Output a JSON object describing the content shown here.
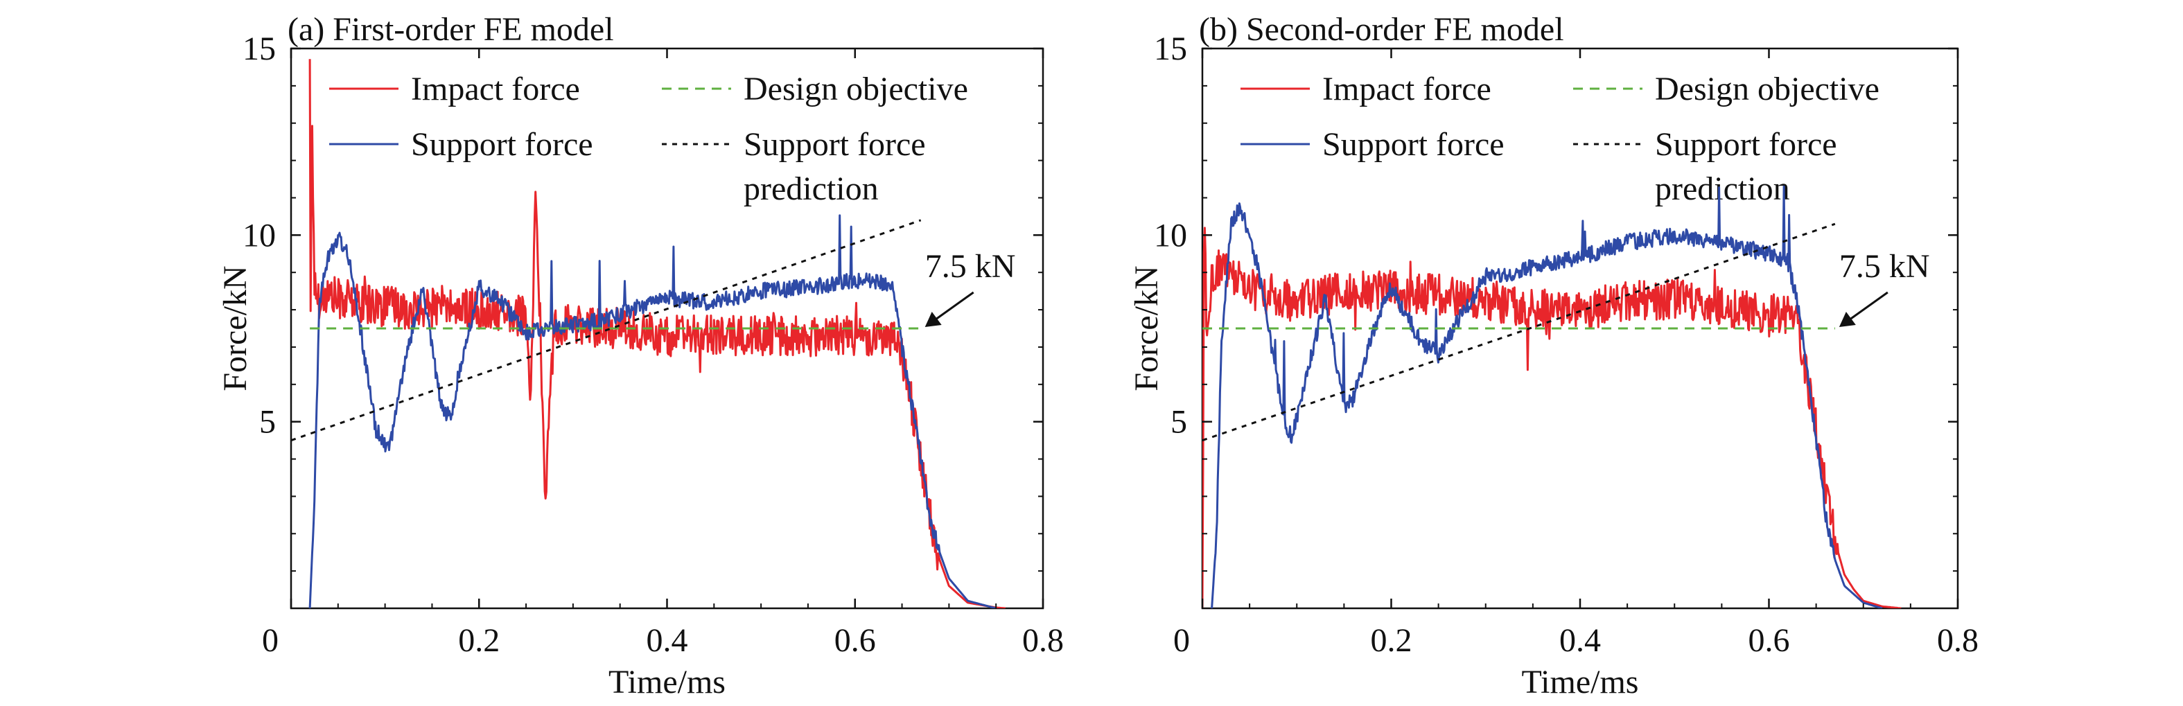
{
  "chart_data": [
    {
      "type": "line",
      "title": "(a) First-order FE model",
      "xlabel": "Time/ms",
      "ylabel": "Force/kN",
      "xlim": [
        0,
        0.8
      ],
      "ylim": [
        0,
        15
      ],
      "xticks": [
        "0",
        "0.2",
        "0.4",
        "0.6",
        "0.8"
      ],
      "yticks": [
        "5",
        "10",
        "15"
      ],
      "xtick_values": [
        0,
        0.2,
        0.4,
        0.6,
        0.8
      ],
      "ytick_values": [
        5,
        10,
        15
      ],
      "grid": false,
      "legend_placement": "top",
      "annotation": {
        "text": "7.5 kN",
        "points_to": [
          0.67,
          7.5
        ]
      },
      "legend": {
        "impact": "Impact force",
        "support": "Support force",
        "design": "Design objective",
        "prediction_line1": "Support force",
        "prediction_line2": "prediction"
      },
      "series": [
        {
          "name": "Impact force",
          "color": "#e8262b",
          "style": "solid",
          "x": [
            0.02,
            0.021,
            0.022,
            0.025,
            0.03,
            0.04,
            0.05,
            0.07,
            0.1,
            0.13,
            0.16,
            0.2,
            0.23,
            0.25,
            0.255,
            0.26,
            0.265,
            0.27,
            0.28,
            0.3,
            0.35,
            0.4,
            0.45,
            0.5,
            0.55,
            0.6,
            0.63,
            0.645,
            0.65,
            0.66,
            0.67,
            0.68,
            0.69,
            0.7,
            0.72,
            0.75,
            0.76
          ],
          "y": [
            15.0,
            6.5,
            13.5,
            8.6,
            8.3,
            8.4,
            8.3,
            8.2,
            8.1,
            8.0,
            8.1,
            8.0,
            7.9,
            7.8,
            5.2,
            11.2,
            7.8,
            2.8,
            7.6,
            7.6,
            7.5,
            7.3,
            7.3,
            7.3,
            7.3,
            7.3,
            7.3,
            7.3,
            6.8,
            5.5,
            4.0,
            2.4,
            1.3,
            0.6,
            0.15,
            0.02,
            0.0
          ]
        },
        {
          "name": "Support force",
          "color": "#2e4aa6",
          "style": "solid",
          "x": [
            0.02,
            0.025,
            0.03,
            0.04,
            0.05,
            0.06,
            0.08,
            0.09,
            0.1,
            0.105,
            0.12,
            0.14,
            0.16,
            0.17,
            0.18,
            0.2,
            0.22,
            0.25,
            0.28,
            0.3,
            0.33,
            0.36,
            0.4,
            0.45,
            0.5,
            0.55,
            0.6,
            0.64,
            0.645,
            0.65,
            0.66,
            0.67,
            0.68,
            0.69,
            0.7,
            0.72,
            0.75
          ],
          "y": [
            0.0,
            3.0,
            8.2,
            9.5,
            9.9,
            9.6,
            6.5,
            4.8,
            4.4,
            4.3,
            6.5,
            8.6,
            5.4,
            5.1,
            6.5,
            8.6,
            8.3,
            7.4,
            7.5,
            7.6,
            7.7,
            8.0,
            8.3,
            8.2,
            8.5,
            8.6,
            8.8,
            8.7,
            7.8,
            7.0,
            5.5,
            4.0,
            2.4,
            1.5,
            0.8,
            0.2,
            0.0
          ]
        },
        {
          "name": "Design objective",
          "color": "#5fb040",
          "style": "dashed",
          "x": [
            0.02,
            0.67
          ],
          "y": [
            7.5,
            7.5
          ]
        },
        {
          "name": "Support force prediction",
          "color": "#111111",
          "style": "dotted",
          "x": [
            0.0,
            0.67
          ],
          "y": [
            4.5,
            10.4
          ]
        }
      ]
    },
    {
      "type": "line",
      "title": "(b) Second-order FE model",
      "xlabel": "Time/ms",
      "ylabel": "Force/kN",
      "xlim": [
        0,
        0.8
      ],
      "ylim": [
        0,
        15
      ],
      "xticks": [
        "0",
        "0.2",
        "0.4",
        "0.6",
        "0.8"
      ],
      "yticks": [
        "5",
        "10",
        "15"
      ],
      "xtick_values": [
        0,
        0.2,
        0.4,
        0.6,
        0.8
      ],
      "ytick_values": [
        5,
        10,
        15
      ],
      "grid": false,
      "legend_placement": "top",
      "annotation": {
        "text": "7.5 kN",
        "points_to": [
          0.67,
          7.5
        ]
      },
      "legend": {
        "impact": "Impact force",
        "support": "Support force",
        "design": "Design objective",
        "prediction_line1": "Support force",
        "prediction_line2": "prediction"
      },
      "series": [
        {
          "name": "Impact force",
          "color": "#e8262b",
          "style": "solid",
          "x": [
            0.0,
            0.002,
            0.005,
            0.01,
            0.02,
            0.04,
            0.06,
            0.1,
            0.15,
            0.2,
            0.25,
            0.3,
            0.35,
            0.4,
            0.45,
            0.5,
            0.55,
            0.6,
            0.62,
            0.63,
            0.64,
            0.65,
            0.66,
            0.67,
            0.68,
            0.69,
            0.7,
            0.72,
            0.74
          ],
          "y": [
            0.0,
            11.0,
            6.8,
            8.9,
            9.2,
            8.8,
            8.4,
            8.2,
            8.5,
            8.5,
            8.4,
            8.3,
            8.0,
            8.0,
            8.2,
            8.3,
            8.1,
            7.9,
            7.9,
            7.6,
            6.2,
            4.8,
            3.2,
            1.8,
            0.9,
            0.5,
            0.2,
            0.05,
            0.0
          ]
        },
        {
          "name": "Support force",
          "color": "#2e4aa6",
          "style": "solid",
          "x": [
            0.01,
            0.015,
            0.02,
            0.03,
            0.04,
            0.05,
            0.06,
            0.08,
            0.09,
            0.095,
            0.11,
            0.13,
            0.15,
            0.16,
            0.18,
            0.2,
            0.23,
            0.25,
            0.28,
            0.3,
            0.33,
            0.36,
            0.4,
            0.45,
            0.5,
            0.55,
            0.6,
            0.62,
            0.63,
            0.64,
            0.65,
            0.66,
            0.67,
            0.68,
            0.7,
            0.72
          ],
          "y": [
            0.0,
            2.0,
            7.0,
            10.2,
            10.8,
            10.0,
            9.0,
            6.0,
            4.8,
            4.6,
            6.2,
            8.3,
            5.4,
            5.6,
            7.4,
            8.6,
            7.2,
            6.8,
            8.1,
            8.9,
            9.0,
            9.2,
            9.4,
            9.8,
            10.0,
            9.8,
            9.5,
            9.3,
            8.2,
            6.5,
            4.5,
            2.5,
            1.3,
            0.6,
            0.15,
            0.0
          ]
        },
        {
          "name": "Design objective",
          "color": "#5fb040",
          "style": "dashed",
          "x": [
            0.0,
            0.67
          ],
          "y": [
            7.5,
            7.5
          ]
        },
        {
          "name": "Support force prediction",
          "color": "#111111",
          "style": "dotted",
          "x": [
            0.0,
            0.67
          ],
          "y": [
            4.5,
            10.3
          ]
        }
      ]
    }
  ]
}
